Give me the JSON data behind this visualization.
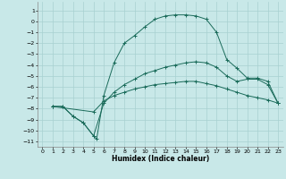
{
  "xlabel": "Humidex (Indice chaleur)",
  "bg_color": "#c8e8e8",
  "grid_color": "#a8d0d0",
  "line_color": "#1a6b5a",
  "xlim": [
    -0.5,
    23.5
  ],
  "ylim": [
    -11.5,
    1.8
  ],
  "yticks": [
    1,
    0,
    -1,
    -2,
    -3,
    -4,
    -5,
    -6,
    -7,
    -8,
    -9,
    -10,
    -11
  ],
  "xticks": [
    0,
    1,
    2,
    3,
    4,
    5,
    6,
    7,
    8,
    9,
    10,
    11,
    12,
    13,
    14,
    15,
    16,
    17,
    18,
    19,
    20,
    21,
    22,
    23
  ],
  "curve1_x": [
    1,
    2,
    3,
    4,
    5,
    5.3,
    6,
    7,
    8,
    9,
    10,
    11,
    12,
    13,
    14,
    15,
    16,
    17,
    18,
    19,
    20,
    21,
    22,
    23
  ],
  "curve1_y": [
    -7.8,
    -7.8,
    -8.7,
    -9.3,
    -10.5,
    -10.8,
    -6.8,
    -3.8,
    -2.0,
    -1.3,
    -0.5,
    0.2,
    0.5,
    0.6,
    0.6,
    0.5,
    0.2,
    -1.0,
    -3.5,
    -4.3,
    -5.2,
    -5.2,
    -5.5,
    -7.5
  ],
  "curve2_x": [
    1,
    2,
    3,
    4,
    5,
    6,
    7,
    8,
    9,
    10,
    11,
    12,
    13,
    14,
    15,
    16,
    17,
    18,
    19,
    20,
    21,
    22,
    23
  ],
  "curve2_y": [
    -7.8,
    -7.8,
    -8.7,
    -9.3,
    -10.5,
    -7.5,
    -6.5,
    -5.8,
    -5.3,
    -4.8,
    -4.5,
    -4.2,
    -4.0,
    -3.8,
    -3.7,
    -3.8,
    -4.2,
    -5.0,
    -5.5,
    -5.3,
    -5.3,
    -5.8,
    -7.5
  ],
  "curve3_x": [
    1,
    5,
    6,
    7,
    8,
    9,
    10,
    11,
    12,
    13,
    14,
    15,
    16,
    17,
    18,
    19,
    20,
    21,
    22,
    23
  ],
  "curve3_y": [
    -7.8,
    -8.3,
    -7.3,
    -6.8,
    -6.5,
    -6.2,
    -6.0,
    -5.8,
    -5.7,
    -5.6,
    -5.5,
    -5.5,
    -5.7,
    -5.9,
    -6.2,
    -6.5,
    -6.8,
    -7.0,
    -7.2,
    -7.5
  ]
}
